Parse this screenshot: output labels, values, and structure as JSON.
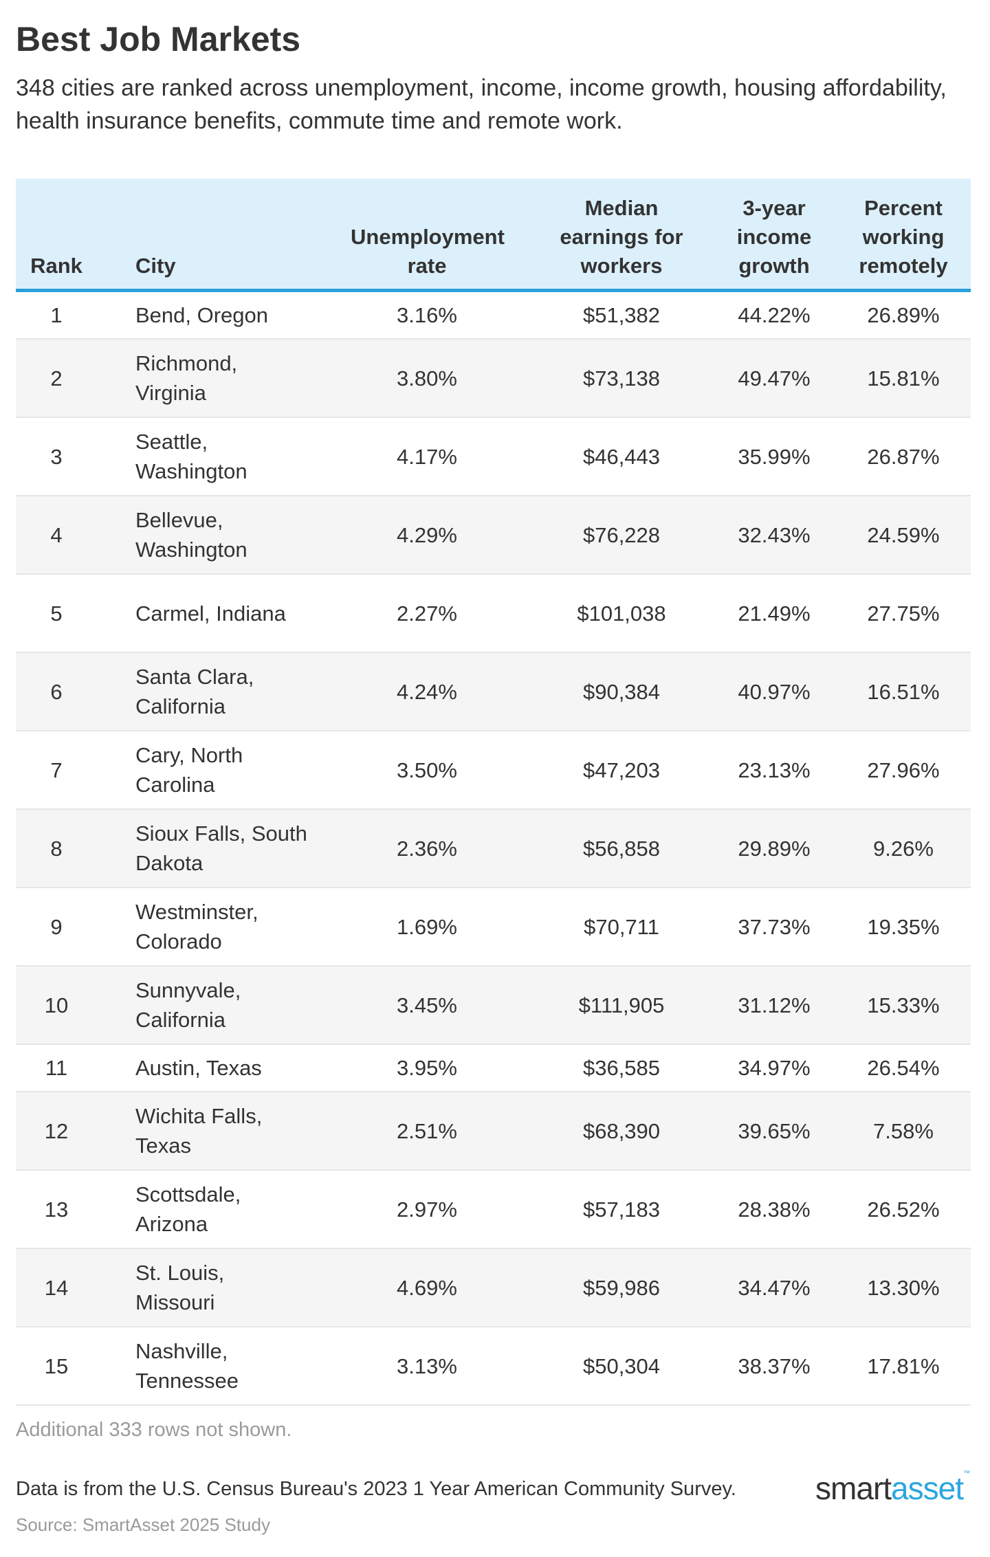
{
  "title": "Best Job Markets",
  "subtitle": "348 cities are ranked across unemployment, income, income growth, housing affordability, health insurance benefits, commute time and remote work.",
  "colors": {
    "header_bg": "#dcf0fb",
    "accent": "#2a9fd8",
    "row_alt": "#f5f5f5"
  },
  "table": {
    "headers": [
      "Rank",
      "City",
      "Unemployment rate",
      "Median earnings for workers",
      "3-year income growth",
      "Percent working remotely"
    ],
    "rows": [
      {
        "rank": "1",
        "city": "Bend, Oregon",
        "unemployment": "3.16%",
        "earnings": "$51,382",
        "growth": "44.22%",
        "remote": "26.89%"
      },
      {
        "rank": "2",
        "city": "Richmond, Virginia",
        "unemployment": "3.80%",
        "earnings": "$73,138",
        "growth": "49.47%",
        "remote": "15.81%"
      },
      {
        "rank": "3",
        "city": "Seattle, Washington",
        "unemployment": "4.17%",
        "earnings": "$46,443",
        "growth": "35.99%",
        "remote": "26.87%"
      },
      {
        "rank": "4",
        "city": "Bellevue, Washington",
        "unemployment": "4.29%",
        "earnings": "$76,228",
        "growth": "32.43%",
        "remote": "24.59%"
      },
      {
        "rank": "5",
        "city": "Carmel, Indiana",
        "unemployment": "2.27%",
        "earnings": "$101,038",
        "growth": "21.49%",
        "remote": "27.75%"
      },
      {
        "rank": "6",
        "city": "Santa Clara, California",
        "unemployment": "4.24%",
        "earnings": "$90,384",
        "growth": "40.97%",
        "remote": "16.51%"
      },
      {
        "rank": "7",
        "city": "Cary, North Carolina",
        "unemployment": "3.50%",
        "earnings": "$47,203",
        "growth": "23.13%",
        "remote": "27.96%"
      },
      {
        "rank": "8",
        "city": "Sioux Falls, South Dakota",
        "unemployment": "2.36%",
        "earnings": "$56,858",
        "growth": "29.89%",
        "remote": "9.26%"
      },
      {
        "rank": "9",
        "city": "Westminster, Colorado",
        "unemployment": "1.69%",
        "earnings": "$70,711",
        "growth": "37.73%",
        "remote": "19.35%"
      },
      {
        "rank": "10",
        "city": "Sunnyvale, California",
        "unemployment": "3.45%",
        "earnings": "$111,905",
        "growth": "31.12%",
        "remote": "15.33%"
      },
      {
        "rank": "11",
        "city": "Austin, Texas",
        "unemployment": "3.95%",
        "earnings": "$36,585",
        "growth": "34.97%",
        "remote": "26.54%"
      },
      {
        "rank": "12",
        "city": "Wichita Falls, Texas",
        "unemployment": "2.51%",
        "earnings": "$68,390",
        "growth": "39.65%",
        "remote": "7.58%"
      },
      {
        "rank": "13",
        "city": "Scottsdale, Arizona",
        "unemployment": "2.97%",
        "earnings": "$57,183",
        "growth": "28.38%",
        "remote": "26.52%"
      },
      {
        "rank": "14",
        "city": "St. Louis, Missouri",
        "unemployment": "4.69%",
        "earnings": "$59,986",
        "growth": "34.47%",
        "remote": "13.30%"
      },
      {
        "rank": "15",
        "city": "Nashville, Tennessee",
        "unemployment": "3.13%",
        "earnings": "$50,304",
        "growth": "38.37%",
        "remote": "17.81%"
      }
    ]
  },
  "note": "Additional 333 rows not shown.",
  "footer": "Data is from the U.S. Census Bureau's 2023 1 Year American Community Survey.",
  "source": "Source: SmartAsset 2025 Study",
  "logo": {
    "part1": "smart",
    "part2": "asset",
    "tm": "™"
  }
}
